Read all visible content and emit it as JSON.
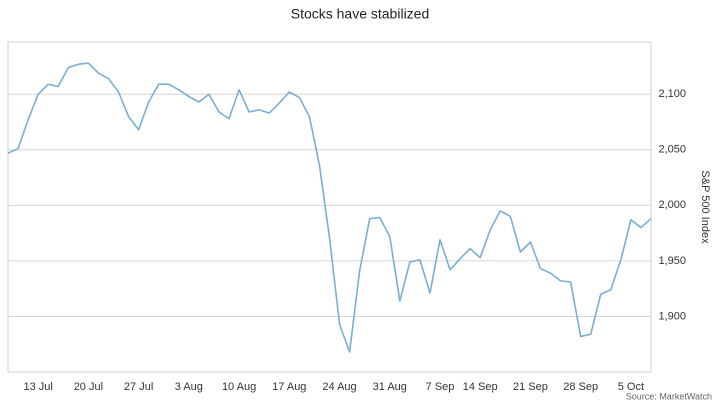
{
  "chart_data": {
    "type": "line",
    "title": "Stocks have stabilized",
    "y_axis_label": "S&P 500 Index",
    "source": "Source: MarketWatch",
    "categories": [
      null,
      null,
      null,
      "13 Jul",
      null,
      null,
      null,
      null,
      "20 Jul",
      null,
      null,
      null,
      null,
      "27 Jul",
      null,
      null,
      null,
      null,
      "3 Aug",
      null,
      null,
      null,
      null,
      "10 Aug",
      null,
      null,
      null,
      null,
      "17 Aug",
      null,
      null,
      null,
      null,
      "24 Aug",
      null,
      null,
      null,
      null,
      "31 Aug",
      null,
      null,
      null,
      null,
      "7 Sep",
      null,
      null,
      null,
      "14 Sep",
      null,
      null,
      null,
      null,
      "21 Sep",
      null,
      null,
      null,
      null,
      "28 Sep",
      null,
      null,
      null,
      null,
      "5 Oct",
      null,
      null
    ],
    "values": [
      2047,
      2051,
      2077,
      2100,
      2109,
      2107,
      2124,
      2127,
      2128,
      2119,
      2114,
      2102,
      2080,
      2068,
      2093,
      2109,
      2109,
      2104,
      2098,
      2093,
      2100,
      2084,
      2078,
      2104,
      2084,
      2086,
      2083,
      2092,
      2102,
      2097,
      2080,
      2036,
      1971,
      1893,
      1868,
      1941,
      1988,
      1989,
      1972,
      1914,
      1949,
      1951,
      1921,
      1969,
      1942,
      1952,
      1961,
      1953,
      1978,
      1995,
      1990,
      1958,
      1967,
      1943,
      1939,
      1932,
      1931,
      1882,
      1884,
      1920,
      1924,
      1951,
      1987,
      1980,
      1988
    ],
    "color": "#7aaed6",
    "ylim": [
      1850,
      2147
    ],
    "yticks": [
      {
        "value": 1900,
        "label": "1,900"
      },
      {
        "value": 1950,
        "label": "1,950"
      },
      {
        "value": 2000,
        "label": "2,000"
      },
      {
        "value": 2050,
        "label": "2,050"
      },
      {
        "value": 2100,
        "label": "2,100"
      }
    ],
    "y_axis_side": "right",
    "grid": true
  }
}
